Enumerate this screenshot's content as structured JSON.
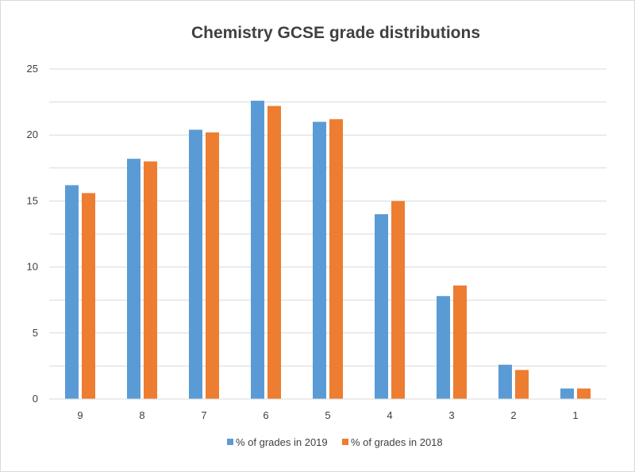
{
  "chart_data": {
    "type": "bar",
    "title": "Chemistry GCSE grade distributions",
    "xlabel": "",
    "ylabel": "",
    "categories": [
      "9",
      "8",
      "7",
      "6",
      "5",
      "4",
      "3",
      "2",
      "1"
    ],
    "series": [
      {
        "name": "% of grades in 2019",
        "color": "#5b9bd5",
        "values": [
          16.2,
          18.2,
          20.4,
          22.6,
          21.0,
          14.0,
          7.8,
          2.6,
          0.8
        ]
      },
      {
        "name": "% of grades in 2018",
        "color": "#ed7d31",
        "values": [
          15.6,
          18.0,
          20.2,
          22.2,
          21.2,
          15.0,
          8.6,
          2.2,
          0.8
        ]
      }
    ],
    "ylim": [
      0,
      25
    ],
    "yticks": [
      0,
      5,
      10,
      15,
      20,
      25
    ],
    "minor_gridlines_every": 2.5,
    "grid": true,
    "legend": "bottom"
  }
}
